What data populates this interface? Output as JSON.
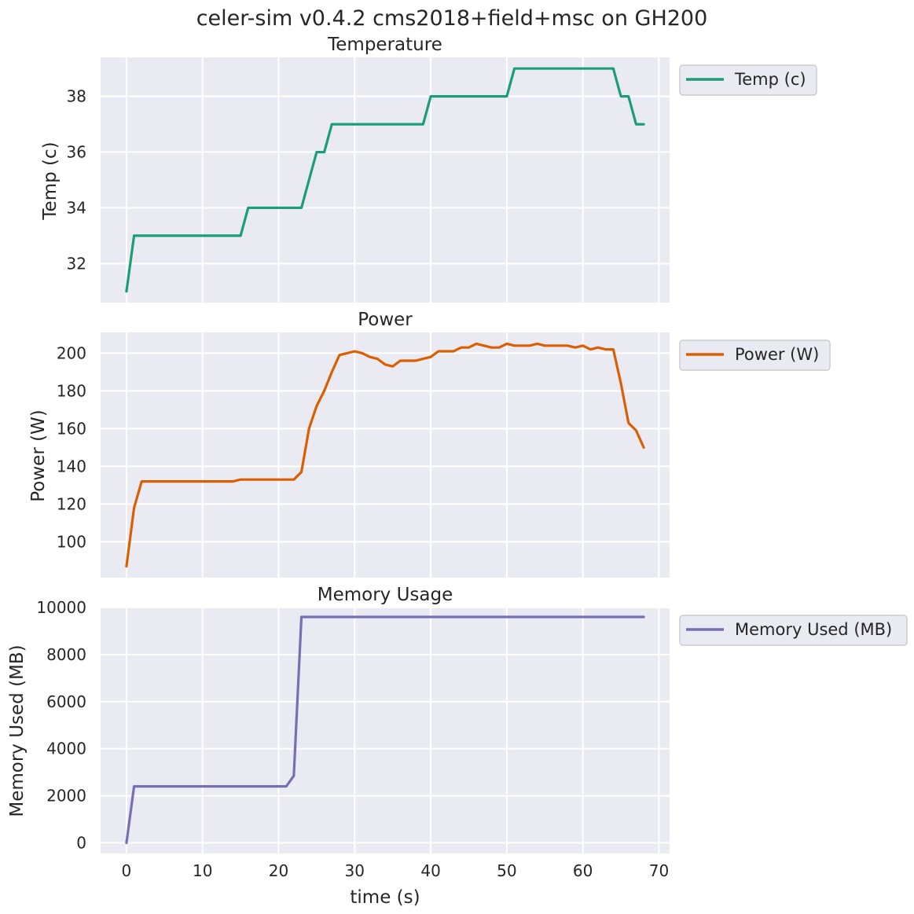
{
  "figure": {
    "title": "celer-sim v0.4.2 cms2018+field+msc on GH200",
    "xlabel": "time (s)"
  },
  "colors": {
    "background": "#eaeaf2",
    "grid": "#ffffff",
    "legend_bg": "#eaeaf2",
    "legend_border": "#cccccc"
  },
  "chart_data": [
    {
      "type": "line",
      "title": "Temperature",
      "xlabel": "",
      "ylabel": "Temp (c)",
      "xlim": [
        -3.4,
        71.4
      ],
      "ylim": [
        30.6,
        39.4
      ],
      "xticks": [
        0,
        10,
        20,
        30,
        40,
        50,
        60,
        70
      ],
      "yticks": [
        32,
        34,
        36,
        38
      ],
      "grid": true,
      "legend_position": "outside-top-right",
      "series": [
        {
          "name": "Temp (c)",
          "color": "#1b9e77",
          "x": [
            0,
            1,
            2,
            3,
            4,
            5,
            6,
            7,
            8,
            9,
            10,
            11,
            12,
            13,
            14,
            15,
            16,
            17,
            18,
            19,
            20,
            21,
            22,
            23,
            24,
            25,
            26,
            27,
            28,
            29,
            30,
            31,
            32,
            33,
            34,
            35,
            36,
            37,
            38,
            39,
            40,
            41,
            42,
            43,
            44,
            45,
            46,
            47,
            48,
            49,
            50,
            51,
            52,
            53,
            54,
            55,
            56,
            57,
            58,
            59,
            60,
            61,
            62,
            63,
            64,
            65,
            66,
            67,
            68
          ],
          "y": [
            31,
            33,
            33,
            33,
            33,
            33,
            33,
            33,
            33,
            33,
            33,
            33,
            33,
            33,
            33,
            33,
            34,
            34,
            34,
            34,
            34,
            34,
            34,
            34,
            35,
            36,
            36,
            37,
            37,
            37,
            37,
            37,
            37,
            37,
            37,
            37,
            37,
            37,
            37,
            37,
            38,
            38,
            38,
            38,
            38,
            38,
            38,
            38,
            38,
            38,
            38,
            39,
            39,
            39,
            39,
            39,
            39,
            39,
            39,
            39,
            39,
            39,
            39,
            39,
            39,
            38,
            38,
            37,
            37
          ]
        }
      ]
    },
    {
      "type": "line",
      "title": "Power",
      "xlabel": "",
      "ylabel": "Power (W)",
      "xlim": [
        -3.4,
        71.4
      ],
      "ylim": [
        81,
        211
      ],
      "xticks": [
        0,
        10,
        20,
        30,
        40,
        50,
        60,
        70
      ],
      "yticks": [
        100,
        120,
        140,
        160,
        180,
        200
      ],
      "grid": true,
      "legend_position": "outside-top-right",
      "series": [
        {
          "name": "Power (W)",
          "color": "#d95f02",
          "x": [
            0,
            1,
            2,
            3,
            4,
            5,
            6,
            7,
            8,
            9,
            10,
            11,
            12,
            13,
            14,
            15,
            16,
            17,
            18,
            19,
            20,
            21,
            22,
            23,
            24,
            25,
            26,
            27,
            28,
            29,
            30,
            31,
            32,
            33,
            34,
            35,
            36,
            37,
            38,
            39,
            40,
            41,
            42,
            43,
            44,
            45,
            46,
            47,
            48,
            49,
            50,
            51,
            52,
            53,
            54,
            55,
            56,
            57,
            58,
            59,
            60,
            61,
            62,
            63,
            64,
            65,
            66,
            67,
            68
          ],
          "y": [
            87,
            118,
            132,
            132,
            132,
            132,
            132,
            132,
            132,
            132,
            132,
            132,
            132,
            132,
            132,
            133,
            133,
            133,
            133,
            133,
            133,
            133,
            133,
            137,
            160,
            172,
            180,
            190,
            199,
            200,
            201,
            200,
            198,
            197,
            194,
            193,
            196,
            196,
            196,
            197,
            198,
            201,
            201,
            201,
            203,
            203,
            205,
            204,
            203,
            203,
            205,
            204,
            204,
            204,
            205,
            204,
            204,
            204,
            204,
            203,
            204,
            202,
            203,
            202,
            202,
            184,
            163,
            159,
            150
          ]
        }
      ]
    },
    {
      "type": "line",
      "title": "Memory Usage",
      "xlabel": "time (s)",
      "ylabel": "Memory Used (MB)",
      "xlim": [
        -3.4,
        71.4
      ],
      "ylim": [
        -450,
        10000
      ],
      "xticks": [
        0,
        10,
        20,
        30,
        40,
        50,
        60,
        70
      ],
      "yticks": [
        0,
        2000,
        4000,
        6000,
        8000,
        10000
      ],
      "grid": true,
      "legend_position": "outside-top-right",
      "series": [
        {
          "name": "Memory Used (MB)",
          "color": "#7570b3",
          "x": [
            0,
            1,
            21,
            22,
            23,
            68
          ],
          "y": [
            0,
            2400,
            2400,
            2850,
            9600,
            9600
          ]
        }
      ]
    }
  ]
}
